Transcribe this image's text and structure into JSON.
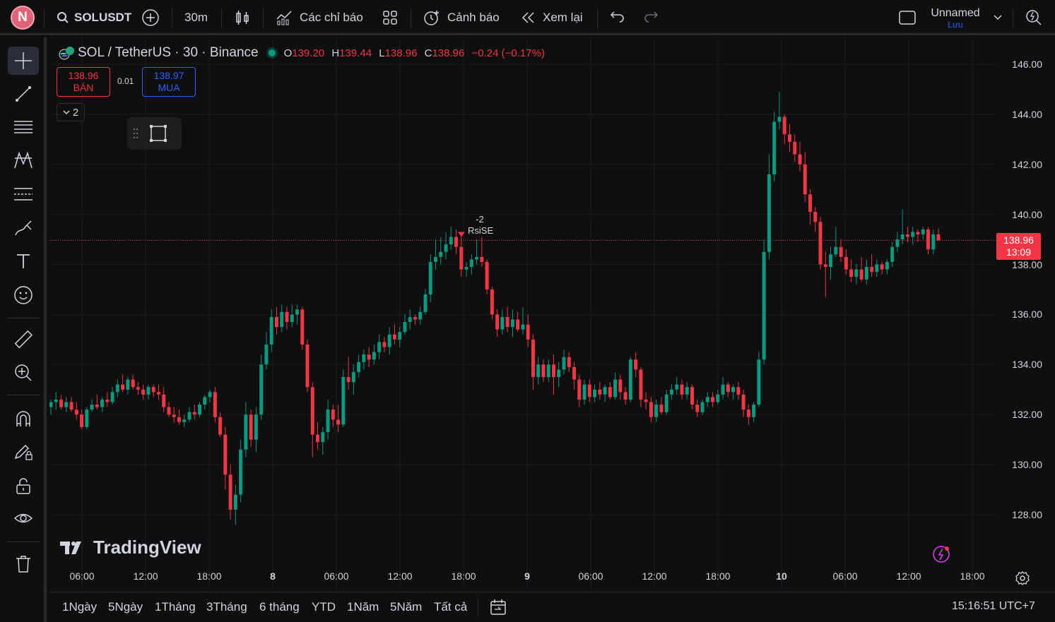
{
  "topbar": {
    "avatar_letter": "N",
    "symbol": "SOLUSDT",
    "interval": "30m",
    "indicators_label": "Các chỉ báo",
    "alert_label": "Cảnh báo",
    "replay_label": "Xem lại",
    "layout_name": "Unnamed",
    "save_label": "Lưu"
  },
  "legend": {
    "title": "SOL / TetherUS · 30 · Binance",
    "o_key": "O",
    "o_val": "139.20",
    "h_key": "H",
    "h_val": "139.44",
    "l_key": "L",
    "l_val": "138.96",
    "c_key": "C",
    "c_val": "138.96",
    "change": "−0.24 (−0.17%)"
  },
  "trade": {
    "sell_price": "138.96",
    "sell_label": "BÁN",
    "spread": "0.01",
    "buy_price": "138.97",
    "buy_label": "MUA",
    "indicators_count": "2"
  },
  "signal": {
    "value": "-2",
    "name": "RsiSE"
  },
  "watermark": "TradingView",
  "current_price": {
    "price": "138.96",
    "countdown": "13:09"
  },
  "price_axis": [
    "146.00",
    "144.00",
    "142.00",
    "140.00",
    "138.00",
    "136.00",
    "134.00",
    "132.00",
    "130.00",
    "128.00"
  ],
  "time_axis": [
    "06:00",
    "12:00",
    "18:00",
    "8",
    "06:00",
    "12:00",
    "18:00",
    "9",
    "06:00",
    "12:00",
    "18:00",
    "10",
    "06:00",
    "12:00",
    "18:00"
  ],
  "ranges": [
    "1Ngày",
    "5Ngày",
    "1Tháng",
    "3Tháng",
    "6 tháng",
    "YTD",
    "1Năm",
    "5Năm",
    "Tất cả"
  ],
  "clock": "15:16:51 UTC+7",
  "colors": {
    "up": "#089981",
    "down": "#f23645",
    "bg": "#0f0f0f",
    "accent": "#2962ff"
  },
  "chart_data": {
    "type": "candlestick",
    "ylim": [
      126.3,
      147
    ],
    "grid": true,
    "candles": [
      [
        132.3,
        132.6,
        132.0,
        132.5
      ],
      [
        132.5,
        132.9,
        132.2,
        132.6
      ],
      [
        132.6,
        132.8,
        132.2,
        132.3
      ],
      [
        132.3,
        132.7,
        132.1,
        132.5
      ],
      [
        132.5,
        132.7,
        132.1,
        132.2
      ],
      [
        132.2,
        132.5,
        131.8,
        132.0
      ],
      [
        132.0,
        132.2,
        131.4,
        131.5
      ],
      [
        131.5,
        132.3,
        131.4,
        132.2
      ],
      [
        132.2,
        132.6,
        132.1,
        132.4
      ],
      [
        132.4,
        132.8,
        132.2,
        132.3
      ],
      [
        132.3,
        132.7,
        132.1,
        132.6
      ],
      [
        132.6,
        132.9,
        132.3,
        132.5
      ],
      [
        132.5,
        133.1,
        132.4,
        132.9
      ],
      [
        132.9,
        133.4,
        132.7,
        133.2
      ],
      [
        133.2,
        133.6,
        132.9,
        133.0
      ],
      [
        133.0,
        133.5,
        132.8,
        133.4
      ],
      [
        133.4,
        133.6,
        133.0,
        133.1
      ],
      [
        133.1,
        133.3,
        132.8,
        133.0
      ],
      [
        133.0,
        133.2,
        132.6,
        132.8
      ],
      [
        132.8,
        133.2,
        132.6,
        133.1
      ],
      [
        133.1,
        133.2,
        132.7,
        132.9
      ],
      [
        132.9,
        133.2,
        132.6,
        132.8
      ],
      [
        132.8,
        133.1,
        132.1,
        132.3
      ],
      [
        132.3,
        132.5,
        131.9,
        132.0
      ],
      [
        132.0,
        132.3,
        131.7,
        131.9
      ],
      [
        131.9,
        132.2,
        131.6,
        131.7
      ],
      [
        131.7,
        132.0,
        131.5,
        131.8
      ],
      [
        131.8,
        132.3,
        131.7,
        132.1
      ],
      [
        132.1,
        132.4,
        131.8,
        132.0
      ],
      [
        132.0,
        132.5,
        131.9,
        132.4
      ],
      [
        132.4,
        132.8,
        132.2,
        132.7
      ],
      [
        132.7,
        133.0,
        132.5,
        132.9
      ],
      [
        132.9,
        133.1,
        131.7,
        131.9
      ],
      [
        131.9,
        132.1,
        131.1,
        131.2
      ],
      [
        131.2,
        131.5,
        129.0,
        129.6
      ],
      [
        129.6,
        130.0,
        127.8,
        128.2
      ],
      [
        128.2,
        129.2,
        127.6,
        128.8
      ],
      [
        128.8,
        131.0,
        128.5,
        130.6
      ],
      [
        130.6,
        132.5,
        130.3,
        132.0
      ],
      [
        132.0,
        132.2,
        130.7,
        131.0
      ],
      [
        131.0,
        132.3,
        130.5,
        132.0
      ],
      [
        132.0,
        134.4,
        131.8,
        134.0
      ],
      [
        134.0,
        135.3,
        133.8,
        134.8
      ],
      [
        134.8,
        136.2,
        134.5,
        135.9
      ],
      [
        135.9,
        136.3,
        135.2,
        135.5
      ],
      [
        135.5,
        136.4,
        135.3,
        136.1
      ],
      [
        136.1,
        136.3,
        135.4,
        135.7
      ],
      [
        135.7,
        136.4,
        135.5,
        136.0
      ],
      [
        136.0,
        136.4,
        135.6,
        136.2
      ],
      [
        136.2,
        136.3,
        134.6,
        134.8
      ],
      [
        134.8,
        135.0,
        132.9,
        133.1
      ],
      [
        133.1,
        133.3,
        130.3,
        131.2
      ],
      [
        131.2,
        131.7,
        130.6,
        130.9
      ],
      [
        130.9,
        131.5,
        130.4,
        131.3
      ],
      [
        131.3,
        132.6,
        131.0,
        132.2
      ],
      [
        132.2,
        132.4,
        131.5,
        131.8
      ],
      [
        131.8,
        132.4,
        131.3,
        131.6
      ],
      [
        131.6,
        133.8,
        131.5,
        133.5
      ],
      [
        133.5,
        134.3,
        133.0,
        133.3
      ],
      [
        133.3,
        134.0,
        132.8,
        133.7
      ],
      [
        133.7,
        134.4,
        133.5,
        134.1
      ],
      [
        134.1,
        134.6,
        133.8,
        134.4
      ],
      [
        134.4,
        134.7,
        133.9,
        134.2
      ],
      [
        134.2,
        134.8,
        134.0,
        134.5
      ],
      [
        134.5,
        135.2,
        134.2,
        134.9
      ],
      [
        134.9,
        135.1,
        134.5,
        134.7
      ],
      [
        134.7,
        135.5,
        134.4,
        135.2
      ],
      [
        135.2,
        135.6,
        134.8,
        135.0
      ],
      [
        135.0,
        135.5,
        134.7,
        135.3
      ],
      [
        135.3,
        136.0,
        135.2,
        135.7
      ],
      [
        135.7,
        136.2,
        135.4,
        135.9
      ],
      [
        135.9,
        136.0,
        135.6,
        135.8
      ],
      [
        135.8,
        136.3,
        135.6,
        136.1
      ],
      [
        136.1,
        137.0,
        136.0,
        136.8
      ],
      [
        136.8,
        138.4,
        136.5,
        138.1
      ],
      [
        138.1,
        139.0,
        137.8,
        138.3
      ],
      [
        138.3,
        139.1,
        138.0,
        138.5
      ],
      [
        138.5,
        139.3,
        138.2,
        138.8
      ],
      [
        138.8,
        139.5,
        138.6,
        139.1
      ],
      [
        139.1,
        139.4,
        138.4,
        138.7
      ],
      [
        138.7,
        139.2,
        137.5,
        137.8
      ],
      [
        137.8,
        138.1,
        137.5,
        137.9
      ],
      [
        137.9,
        138.4,
        137.6,
        138.2
      ],
      [
        138.2,
        139.0,
        138.0,
        138.3
      ],
      [
        138.3,
        139.1,
        137.9,
        138.1
      ],
      [
        138.1,
        138.2,
        136.8,
        137.0
      ],
      [
        137.0,
        137.1,
        135.8,
        136.0
      ],
      [
        136.0,
        136.2,
        135.1,
        135.4
      ],
      [
        135.4,
        136.2,
        135.2,
        135.9
      ],
      [
        135.9,
        136.3,
        135.3,
        135.5
      ],
      [
        135.5,
        136.2,
        135.1,
        135.8
      ],
      [
        135.8,
        136.1,
        135.3,
        135.4
      ],
      [
        135.4,
        136.3,
        135.2,
        135.6
      ],
      [
        135.6,
        136.0,
        134.7,
        135.0
      ],
      [
        135.0,
        135.2,
        133.0,
        133.5
      ],
      [
        133.5,
        134.3,
        133.2,
        134.0
      ],
      [
        134.0,
        134.2,
        133.3,
        133.5
      ],
      [
        133.5,
        134.2,
        133.3,
        134.0
      ],
      [
        134.0,
        134.4,
        132.8,
        133.5
      ],
      [
        133.5,
        134.1,
        133.1,
        133.8
      ],
      [
        133.8,
        134.6,
        133.6,
        134.3
      ],
      [
        134.3,
        134.5,
        133.7,
        133.9
      ],
      [
        133.9,
        134.1,
        133.0,
        133.4
      ],
      [
        133.4,
        133.6,
        132.3,
        132.6
      ],
      [
        132.6,
        133.4,
        132.4,
        133.2
      ],
      [
        133.2,
        133.4,
        132.5,
        132.7
      ],
      [
        132.7,
        133.2,
        132.5,
        133.0
      ],
      [
        133.0,
        133.3,
        132.6,
        132.8
      ],
      [
        132.8,
        133.2,
        132.5,
        133.1
      ],
      [
        133.1,
        133.3,
        132.6,
        132.7
      ],
      [
        132.7,
        133.7,
        132.6,
        133.4
      ],
      [
        133.4,
        133.6,
        132.6,
        132.9
      ],
      [
        132.9,
        133.1,
        132.4,
        132.6
      ],
      [
        132.6,
        134.3,
        132.5,
        134.2
      ],
      [
        134.2,
        134.5,
        133.5,
        133.8
      ],
      [
        133.8,
        133.9,
        132.3,
        132.6
      ],
      [
        132.6,
        132.9,
        132.2,
        132.5
      ],
      [
        132.5,
        132.7,
        131.7,
        131.9
      ],
      [
        131.9,
        132.6,
        131.7,
        132.4
      ],
      [
        132.4,
        132.7,
        132.0,
        132.1
      ],
      [
        132.1,
        133.0,
        132.0,
        132.8
      ],
      [
        132.8,
        133.2,
        132.6,
        133.0
      ],
      [
        133.0,
        133.5,
        132.8,
        133.2
      ],
      [
        133.2,
        133.4,
        132.6,
        132.8
      ],
      [
        132.8,
        133.3,
        132.6,
        133.1
      ],
      [
        133.1,
        133.2,
        132.2,
        132.4
      ],
      [
        132.4,
        132.6,
        131.9,
        132.1
      ],
      [
        132.1,
        132.6,
        132.0,
        132.5
      ],
      [
        132.5,
        132.9,
        132.3,
        132.7
      ],
      [
        132.7,
        132.9,
        132.3,
        132.5
      ],
      [
        132.5,
        133.0,
        132.4,
        132.8
      ],
      [
        132.8,
        133.5,
        132.6,
        133.2
      ],
      [
        133.2,
        133.3,
        132.7,
        132.9
      ],
      [
        132.9,
        133.2,
        132.6,
        133.1
      ],
      [
        133.1,
        133.3,
        132.6,
        132.8
      ],
      [
        132.8,
        133.0,
        131.9,
        132.2
      ],
      [
        132.2,
        132.4,
        131.6,
        131.9
      ],
      [
        131.9,
        132.5,
        131.7,
        132.4
      ],
      [
        132.4,
        134.5,
        132.3,
        134.2
      ],
      [
        134.2,
        139.0,
        134.0,
        138.5
      ],
      [
        138.5,
        142.4,
        138.2,
        141.6
      ],
      [
        141.6,
        144.1,
        141.3,
        143.7
      ],
      [
        143.7,
        144.9,
        143.4,
        143.9
      ],
      [
        143.9,
        144.0,
        142.8,
        143.2
      ],
      [
        143.2,
        143.6,
        142.5,
        142.9
      ],
      [
        142.9,
        143.2,
        142.1,
        142.4
      ],
      [
        142.4,
        142.9,
        141.7,
        142.0
      ],
      [
        142.0,
        142.5,
        140.5,
        140.8
      ],
      [
        140.8,
        141.0,
        139.6,
        140.1
      ],
      [
        140.1,
        140.3,
        139.3,
        139.7
      ],
      [
        139.7,
        139.9,
        137.8,
        138.0
      ],
      [
        138.0,
        138.5,
        136.7,
        137.9
      ],
      [
        137.9,
        138.7,
        137.4,
        138.4
      ],
      [
        138.4,
        139.5,
        138.3,
        138.7
      ],
      [
        138.7,
        139.0,
        138.1,
        138.3
      ],
      [
        138.3,
        138.6,
        137.6,
        137.8
      ],
      [
        137.8,
        138.2,
        137.3,
        137.5
      ],
      [
        137.5,
        138.0,
        137.2,
        137.8
      ],
      [
        137.8,
        138.3,
        137.3,
        137.4
      ],
      [
        137.4,
        138.2,
        137.2,
        137.9
      ],
      [
        137.9,
        138.4,
        137.5,
        137.7
      ],
      [
        137.7,
        138.2,
        137.5,
        138.0
      ],
      [
        138.0,
        138.1,
        137.6,
        137.8
      ],
      [
        137.8,
        138.2,
        137.6,
        138.1
      ],
      [
        138.1,
        138.9,
        137.9,
        138.7
      ],
      [
        138.7,
        139.3,
        138.5,
        139.0
      ],
      [
        139.0,
        140.2,
        138.8,
        139.2
      ],
      [
        139.2,
        139.5,
        138.9,
        139.1
      ],
      [
        139.1,
        139.5,
        138.8,
        139.3
      ],
      [
        139.3,
        139.4,
        138.9,
        139.2
      ],
      [
        139.2,
        139.5,
        139.0,
        139.4
      ],
      [
        139.4,
        139.5,
        138.4,
        138.6
      ],
      [
        138.6,
        139.4,
        138.4,
        139.2
      ],
      [
        139.2,
        139.44,
        138.96,
        138.96
      ]
    ]
  }
}
